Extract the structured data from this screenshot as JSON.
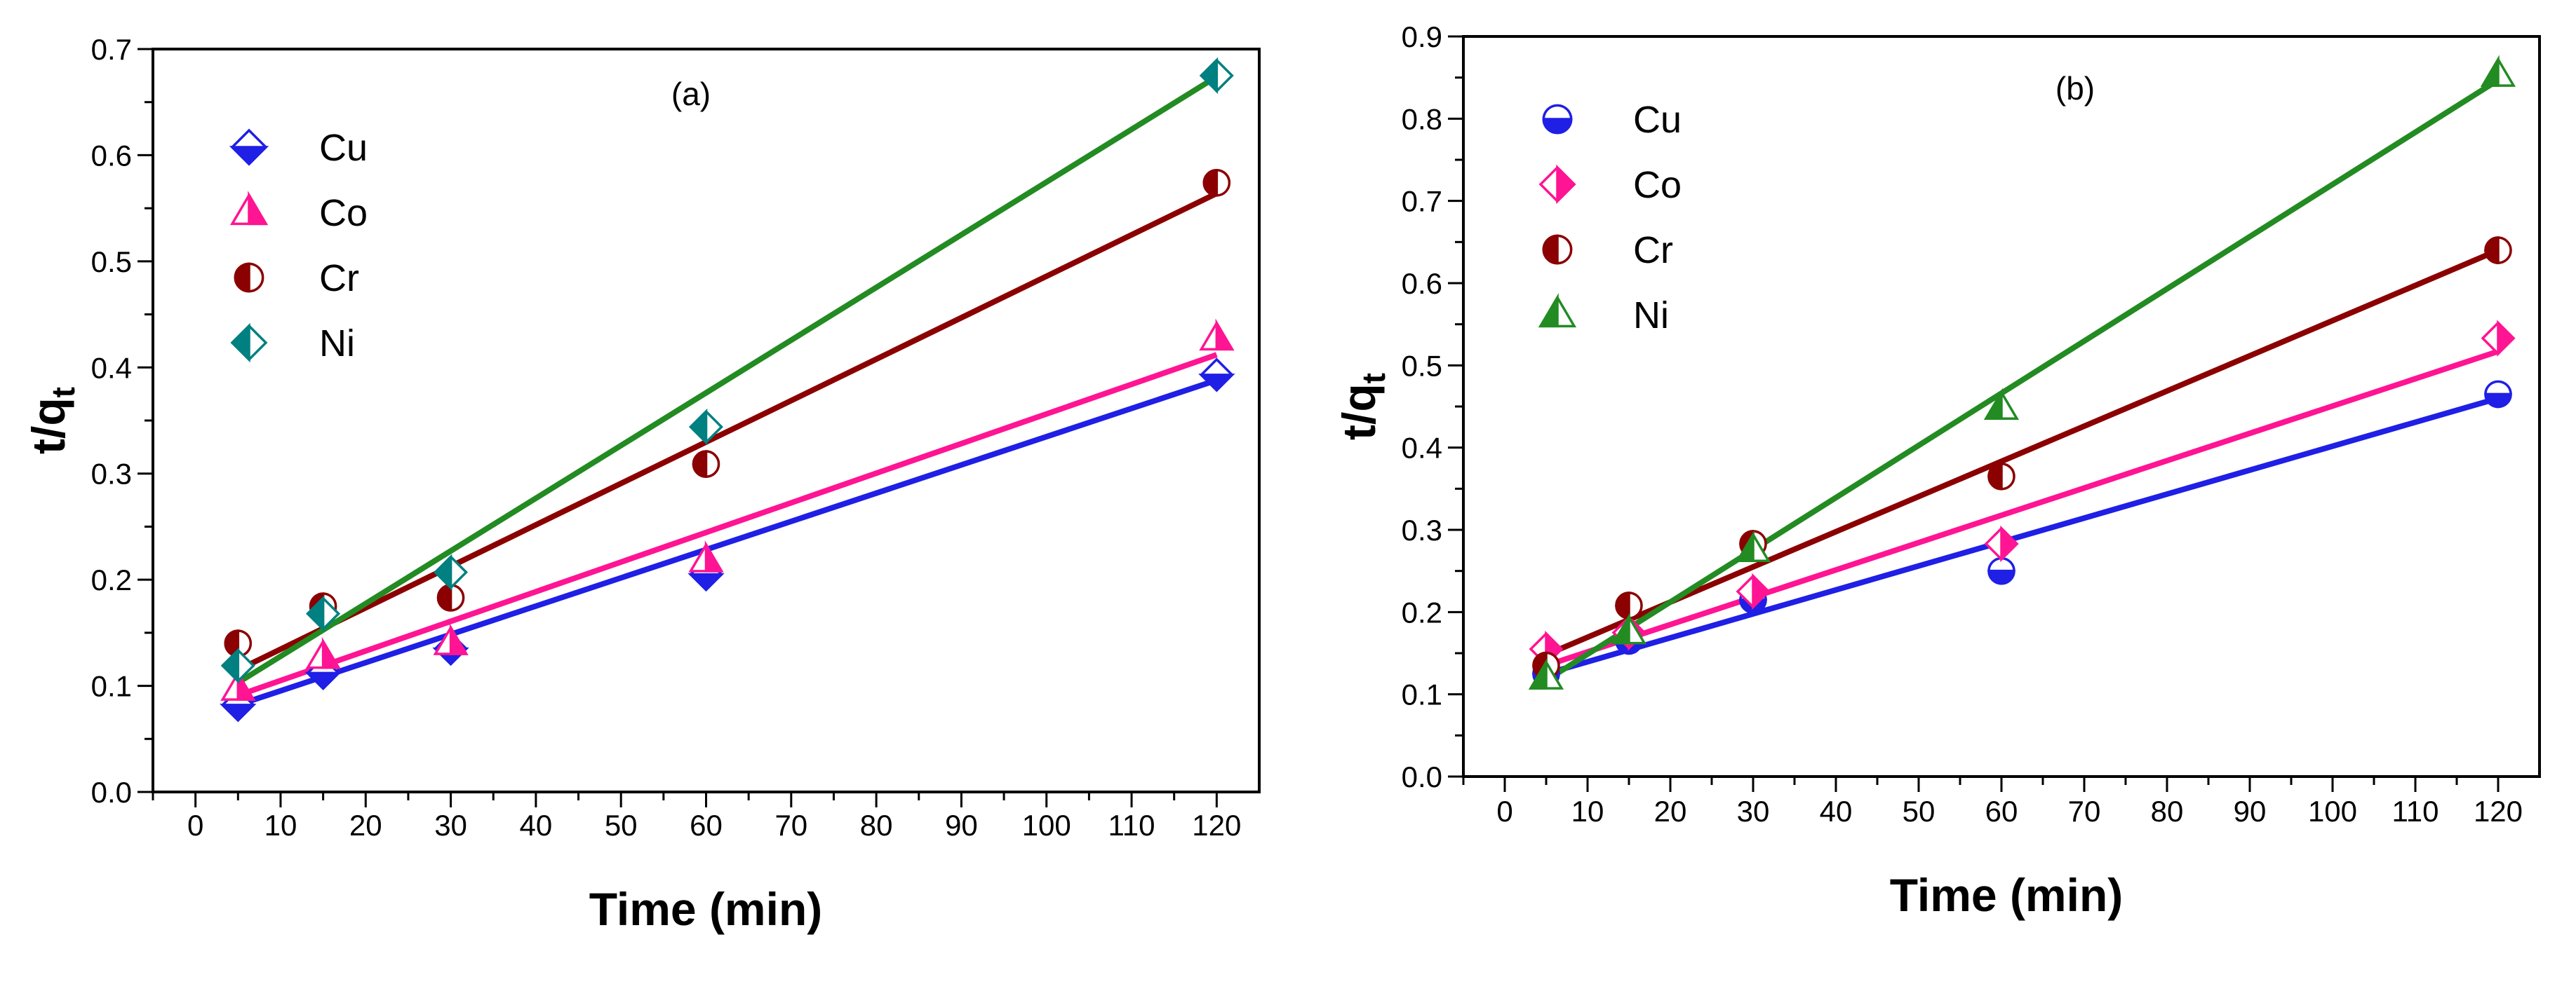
{
  "chart_data": [
    {
      "type": "scatter",
      "panel_label": "(a)",
      "xlabel": "Time (min)",
      "ylabel_main": "t/q",
      "ylabel_sub": "t",
      "xlim": [
        -5,
        125
      ],
      "ylim": [
        0.0,
        0.7
      ],
      "xticks": [
        0,
        10,
        20,
        30,
        40,
        50,
        60,
        70,
        80,
        90,
        100,
        110,
        120
      ],
      "xtick_labels": [
        "0",
        "10",
        "20",
        "30",
        "40",
        "50",
        "60",
        "70",
        "80",
        "90",
        "100",
        "110",
        "120"
      ],
      "yticks": [
        0.0,
        0.1,
        0.2,
        0.3,
        0.4,
        0.5,
        0.6,
        0.7
      ],
      "ytick_labels": [
        "0.0",
        "0.1",
        "0.2",
        "0.3",
        "0.4",
        "0.5",
        "0.6",
        "0.7"
      ],
      "legend_position": "top-left",
      "series": [
        {
          "name": "Cu",
          "color": "#1f1fe6",
          "marker": "diamond-bottom",
          "x": [
            5,
            15,
            30,
            60,
            120
          ],
          "y": [
            0.082,
            0.112,
            0.135,
            0.205,
            0.393
          ],
          "fit": [
            [
              5,
              0.082
            ],
            [
              120,
              0.388
            ]
          ]
        },
        {
          "name": "Co",
          "color": "#ff1493",
          "marker": "triangle-right",
          "x": [
            5,
            15,
            30,
            60,
            120
          ],
          "y": [
            0.097,
            0.127,
            0.14,
            0.218,
            0.427
          ],
          "fit": [
            [
              5,
              0.091
            ],
            [
              120,
              0.412
            ]
          ]
        },
        {
          "name": "Cr",
          "color": "#8b0000",
          "marker": "circle-left",
          "x": [
            5,
            15,
            30,
            60,
            120
          ],
          "y": [
            0.14,
            0.175,
            0.183,
            0.309,
            0.574
          ],
          "fit": [
            [
              5,
              0.115
            ],
            [
              120,
              0.564
            ]
          ]
        },
        {
          "name": "Ni",
          "color": "#008080",
          "marker": "diamond-left",
          "x": [
            5,
            15,
            30,
            60,
            120
          ],
          "y": [
            0.119,
            0.168,
            0.207,
            0.344,
            0.675
          ],
          "fit": [
            [
              5,
              0.103
            ],
            [
              120,
              0.674
            ]
          ],
          "fit_color": "#228b22"
        }
      ]
    },
    {
      "type": "scatter",
      "panel_label": "(b)",
      "xlabel": "Time (min)",
      "ylabel_main": "t/q",
      "ylabel_sub": "t",
      "xlim": [
        -5,
        125
      ],
      "ylim": [
        0.0,
        0.9
      ],
      "xticks": [
        0,
        10,
        20,
        30,
        40,
        50,
        60,
        70,
        80,
        90,
        100,
        110,
        120
      ],
      "xtick_labels": [
        "0",
        "10",
        "20",
        "30",
        "40",
        "50",
        "60",
        "70",
        "80",
        "90",
        "100",
        "110",
        "120"
      ],
      "yticks": [
        0.0,
        0.1,
        0.2,
        0.3,
        0.4,
        0.5,
        0.6,
        0.7,
        0.8,
        0.9
      ],
      "ytick_labels": [
        "0.0",
        "0.1",
        "0.2",
        "0.3",
        "0.4",
        "0.5",
        "0.6",
        "0.7",
        "0.8",
        "0.9"
      ],
      "legend_position": "top-left",
      "series": [
        {
          "name": "Cu",
          "color": "#1f1fe6",
          "marker": "circle-bottom",
          "x": [
            5,
            15,
            30,
            60,
            120
          ],
          "y": [
            0.125,
            0.165,
            0.215,
            0.25,
            0.465
          ],
          "fit": [
            [
              5,
              0.125
            ],
            [
              120,
              0.46
            ]
          ]
        },
        {
          "name": "Co",
          "color": "#ff1493",
          "marker": "diamond-right",
          "x": [
            5,
            15,
            30,
            60,
            120
          ],
          "y": [
            0.155,
            0.175,
            0.225,
            0.283,
            0.533
          ],
          "fit": [
            [
              5,
              0.135
            ],
            [
              120,
              0.517
            ]
          ]
        },
        {
          "name": "Cr",
          "color": "#8b0000",
          "marker": "circle-left",
          "x": [
            5,
            15,
            30,
            60,
            120
          ],
          "y": [
            0.135,
            0.208,
            0.283,
            0.365,
            0.64
          ],
          "fit": [
            [
              5,
              0.148
            ],
            [
              120,
              0.64
            ]
          ]
        },
        {
          "name": "Ni",
          "color": "#228b22",
          "marker": "triangle-left",
          "x": [
            5,
            15,
            30,
            60,
            120
          ],
          "y": [
            0.12,
            0.175,
            0.275,
            0.448,
            0.853
          ],
          "fit": [
            [
              5,
              0.117
            ],
            [
              120,
              0.847
            ]
          ]
        }
      ]
    }
  ]
}
